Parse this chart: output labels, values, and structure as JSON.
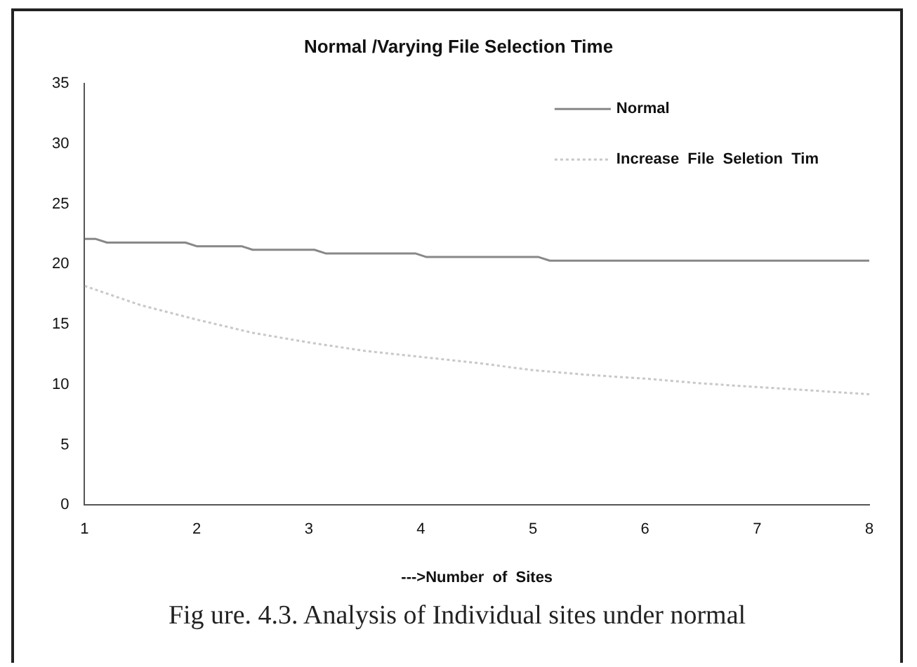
{
  "chart_data": {
    "type": "line",
    "title": "Normal /Varying File Selection Time",
    "xlabel": "--->Number  of  Sites",
    "xlim": [
      1,
      8
    ],
    "xticks": [
      1,
      2,
      3,
      4,
      5,
      6,
      7,
      8
    ],
    "ylim": [
      0,
      35
    ],
    "yticks": [
      0,
      5,
      10,
      15,
      20,
      25,
      30,
      35
    ],
    "grid": false,
    "legend": "top right",
    "marker": "none",
    "series": [
      {
        "name": "Normal",
        "color": "#888888",
        "line_style": "solid",
        "x": [
          1,
          1.1,
          1.2,
          1.9,
          2,
          2.4,
          2.5,
          3.05,
          3.15,
          3.95,
          4.05,
          5.05,
          5.15,
          8
        ],
        "values": [
          22.1,
          22.1,
          21.8,
          21.8,
          21.5,
          21.5,
          21.2,
          21.2,
          20.9,
          20.9,
          20.6,
          20.6,
          20.3,
          20.3
        ]
      },
      {
        "name": "Increase  File  Seletion  Tim",
        "color": "#c8c8c8",
        "line_style": "dotted",
        "x": [
          1,
          1.5,
          2,
          2.5,
          3,
          3.5,
          4,
          4.5,
          5,
          5.5,
          6,
          6.5,
          7,
          7.5,
          8
        ],
        "values": [
          18.2,
          16.6,
          15.4,
          14.3,
          13.5,
          12.8,
          12.3,
          11.8,
          11.2,
          10.8,
          10.5,
          10.1,
          9.8,
          9.5,
          9.2
        ]
      }
    ],
    "annotations": [
      "Fig ure. 4.3. Analysis of Individual sites under normal"
    ]
  }
}
